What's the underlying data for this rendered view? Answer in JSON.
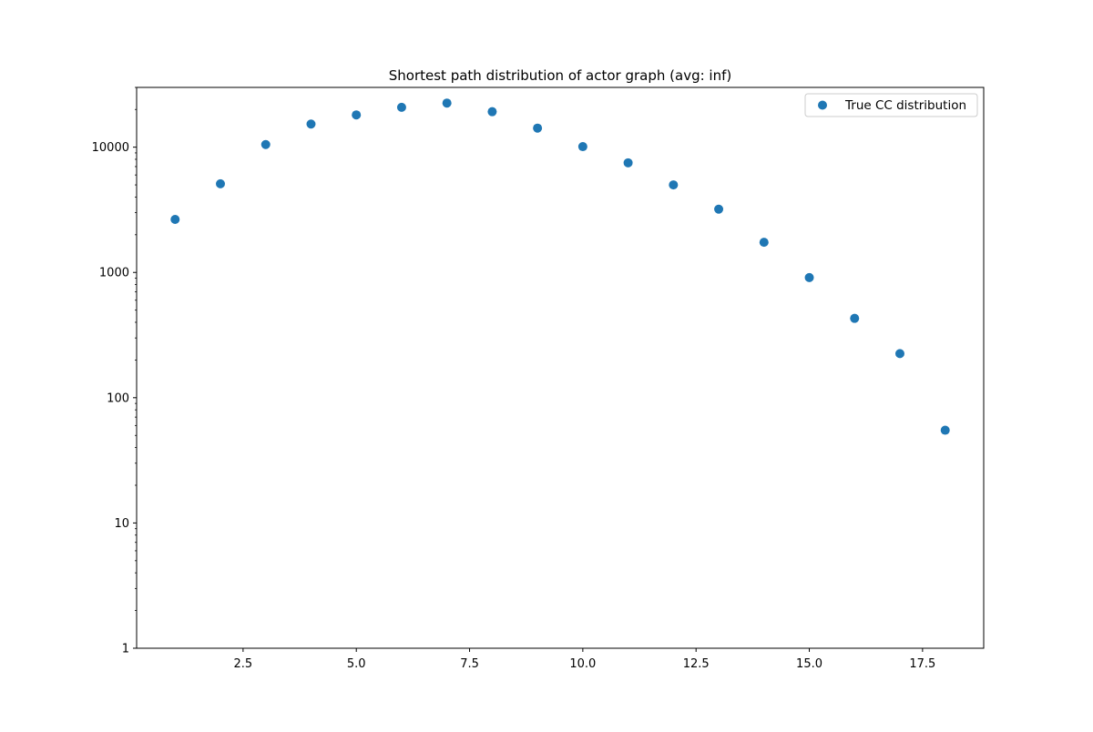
{
  "chart_data": {
    "type": "scatter",
    "title": "Shortest path distribution of actor graph (avg: inf)",
    "xlabel": "",
    "ylabel": "",
    "xlim": [
      0.15,
      18.85
    ],
    "ylim": [
      1,
      30000
    ],
    "yscale": "log",
    "grid": false,
    "legend_position": "top-right",
    "x_ticks": [
      2.5,
      5.0,
      7.5,
      10.0,
      12.5,
      15.0,
      17.5
    ],
    "x_tick_labels": [
      "2.5",
      "5.0",
      "7.5",
      "10.0",
      "12.5",
      "15.0",
      "17.5"
    ],
    "y_ticks": [
      1,
      10,
      100,
      1000,
      10000
    ],
    "y_tick_labels": [
      "1",
      "10",
      "100",
      "1000",
      "10000"
    ],
    "series": [
      {
        "name": "True CC distribution",
        "color": "#1f77b4",
        "marker": "circle",
        "x": [
          1,
          2,
          3,
          4,
          5,
          6,
          7,
          8,
          9,
          10,
          11,
          12,
          13,
          14,
          15,
          16,
          17,
          18
        ],
        "y": [
          2650,
          5100,
          10500,
          15300,
          18100,
          20800,
          22500,
          19200,
          14200,
          10100,
          7500,
          5000,
          3200,
          1740,
          910,
          430,
          225,
          55
        ]
      }
    ]
  }
}
